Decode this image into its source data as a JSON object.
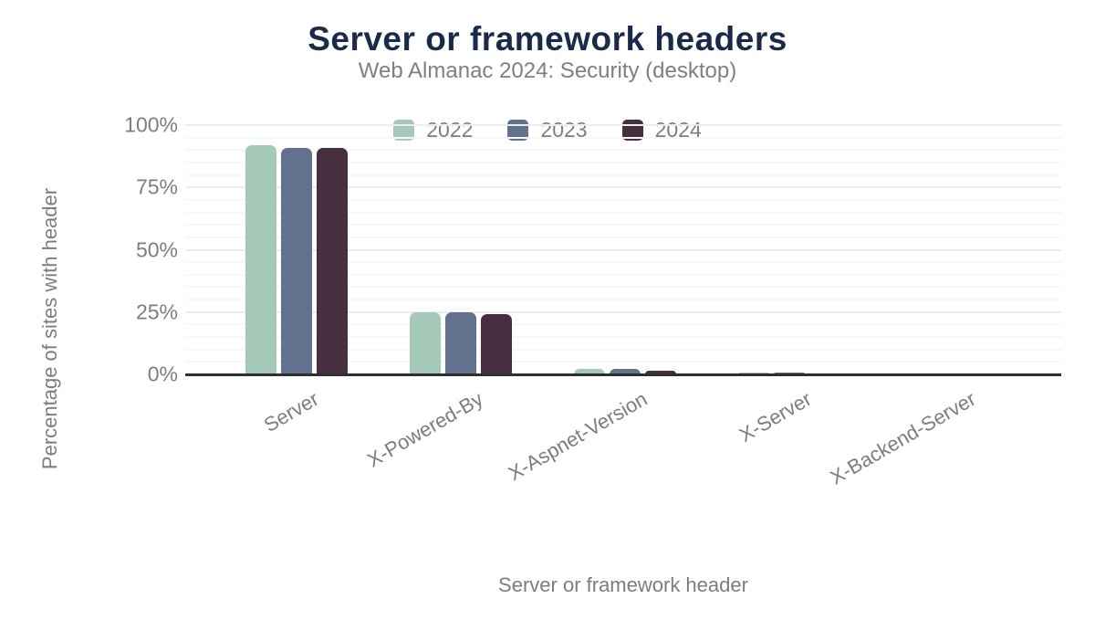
{
  "chart_data": {
    "type": "bar",
    "title": "Server or framework headers",
    "subtitle": "Web Almanac 2024: Security (desktop)",
    "xlabel": "Server or framework header",
    "ylabel": "Percentage of sites with header",
    "categories": [
      "Server",
      "X-Powered-By",
      "X-Aspnet-Version",
      "X-Server",
      "X-Backend-Server"
    ],
    "series": [
      {
        "name": "2022",
        "color": "#a4c9b8",
        "values": [
          92,
          25,
          2.1,
          0.6,
          0.5
        ]
      },
      {
        "name": "2023",
        "color": "#61718e",
        "values": [
          91,
          25,
          2.2,
          0.6,
          0.5
        ]
      },
      {
        "name": "2024",
        "color": "#46303f",
        "values": [
          91,
          24,
          1.4,
          0.5,
          0.4
        ]
      }
    ],
    "ylim": [
      0,
      100
    ],
    "yticks": [
      {
        "value": 0,
        "label": "0%"
      },
      {
        "value": 25,
        "label": "25%"
      },
      {
        "value": 50,
        "label": "50%"
      },
      {
        "value": 75,
        "label": "75%"
      },
      {
        "value": 100,
        "label": "100%"
      }
    ],
    "grid": {
      "minor_step_pct": 5,
      "major_step_pct": 25,
      "minor_color": "#f7f7f7",
      "major_color": "#ededed"
    },
    "legend_position": "top-center",
    "colors": {
      "title": "#1a2b49",
      "subtitle": "#7f7f7f",
      "axis_text": "#7d7d7d",
      "axis_line": "#2f2f2f",
      "background": "#ffffff"
    }
  }
}
